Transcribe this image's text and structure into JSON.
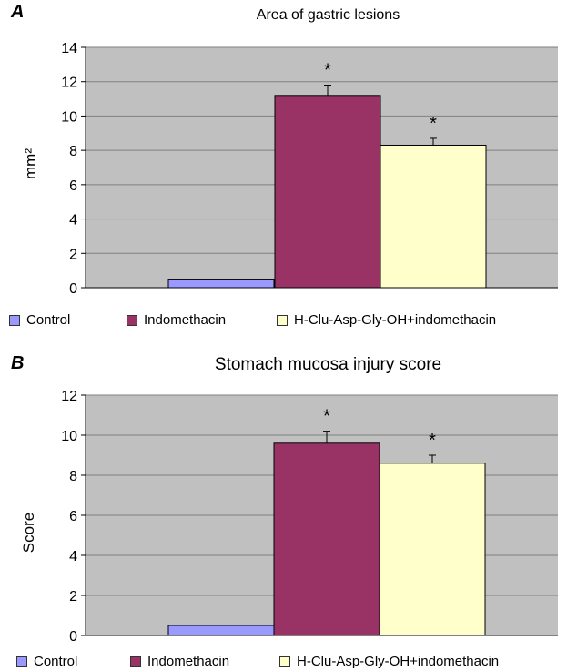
{
  "chart_data": [
    {
      "type": "bar",
      "panel_label": "A",
      "title": "Area of gastric lesions",
      "xlabel": "",
      "ylabel": "mm²",
      "ylim": [
        0,
        14
      ],
      "ytick_step": 2,
      "grid": true,
      "legend_position": "bottom",
      "series": [
        {
          "name": "Control",
          "value": 0.5,
          "error": 0,
          "significance": "",
          "color": "#9999ff"
        },
        {
          "name": "Indomethacin",
          "value": 11.2,
          "error": 0.6,
          "significance": "*",
          "color": "#993366"
        },
        {
          "name": "H-Clu-Asp-Gly-OH+indomethacin",
          "value": 8.3,
          "error": 0.4,
          "significance": "*",
          "color": "#ffffcc"
        }
      ]
    },
    {
      "type": "bar",
      "panel_label": "B",
      "title": "Stomach mucosa injury score",
      "xlabel": "",
      "ylabel": "Score",
      "ylim": [
        0,
        12
      ],
      "ytick_step": 2,
      "grid": true,
      "legend_position": "bottom",
      "series": [
        {
          "name": "Control",
          "value": 0.5,
          "error": 0,
          "significance": "",
          "color": "#9999ff"
        },
        {
          "name": "Indomethacin",
          "value": 9.6,
          "error": 0.6,
          "significance": "*",
          "color": "#993366"
        },
        {
          "name": "H-Clu-Asp-Gly-OH+indomethacin",
          "value": 8.6,
          "error": 0.4,
          "significance": "*",
          "color": "#ffffcc"
        }
      ]
    }
  ],
  "colors": {
    "plot_background": "#c0c0c0",
    "gridline": "#808080",
    "axis": "#000000"
  }
}
